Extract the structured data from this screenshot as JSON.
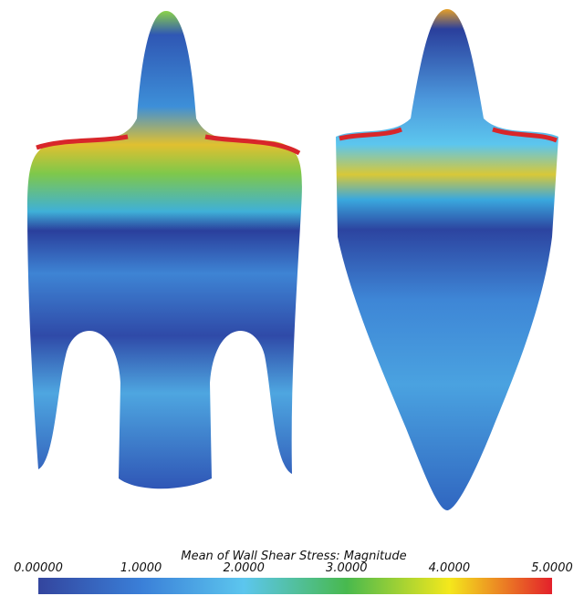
{
  "colorbar": {
    "title": "Mean of Wall Shear Stress: Magnitude",
    "range": [
      0,
      5
    ],
    "ticks": [
      {
        "value": 0,
        "label": "0.00000"
      },
      {
        "value": 1,
        "label": "1.0000"
      },
      {
        "value": 2,
        "label": "2.0000"
      },
      {
        "value": 3,
        "label": "3.0000"
      },
      {
        "value": 4,
        "label": "4.0000"
      },
      {
        "value": 5,
        "label": "5.0000"
      }
    ],
    "colors": [
      "#33459e",
      "#3a7fd8",
      "#5cc6ee",
      "#48b94e",
      "#f4e81c",
      "#e3202b"
    ]
  }
}
